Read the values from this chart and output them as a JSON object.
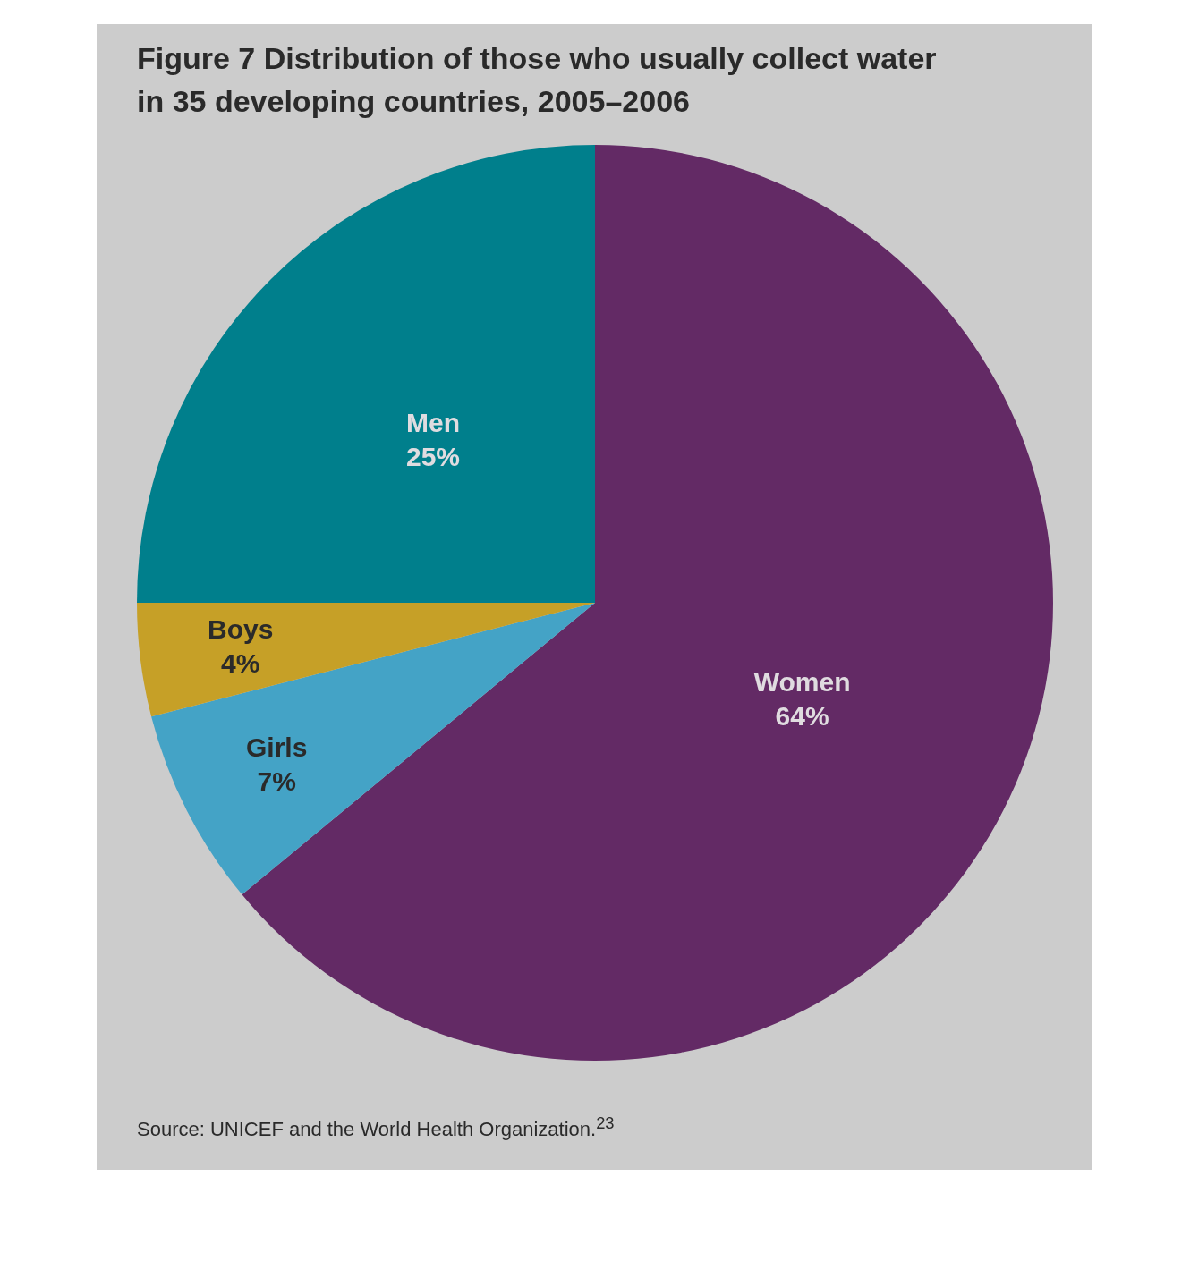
{
  "chart_data": {
    "type": "pie",
    "title": "Figure 7  Distribution of those who usually collect water in 35 developing countries, 2005–2006",
    "categories": [
      "Women",
      "Girls",
      "Boys",
      "Men"
    ],
    "values": [
      64,
      7,
      4,
      25
    ],
    "value_labels": [
      "64%",
      "7%",
      "4%",
      "25%"
    ],
    "colors": [
      "#632a65",
      "#44a3c6",
      "#c6a027",
      "#007f8c"
    ],
    "legend": false,
    "annotations": [
      "Source: UNICEF and the World Health Organization.$^{23}$"
    ]
  }
}
